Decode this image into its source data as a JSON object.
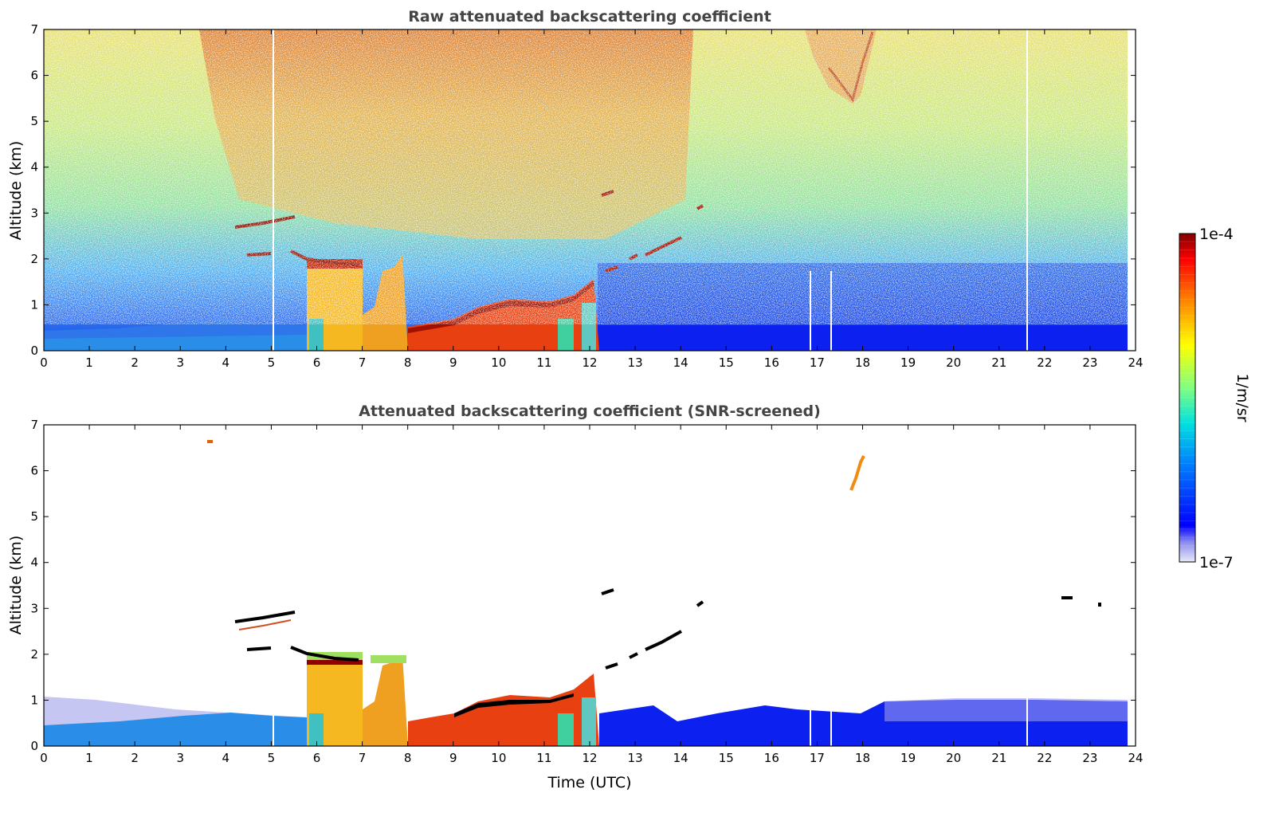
{
  "chart_data": [
    {
      "type": "heatmap",
      "title": "Raw attenuated backscattering coefficient",
      "xlabel": "",
      "ylabel": "Altitude (km)",
      "xlim": [
        0,
        24
      ],
      "ylim": [
        0,
        7
      ],
      "x_ticks": [
        0,
        1,
        2,
        3,
        4,
        5,
        6,
        7,
        8,
        9,
        10,
        11,
        12,
        13,
        14,
        15,
        16,
        17,
        18,
        19,
        20,
        21,
        22,
        23,
        24
      ],
      "y_ticks": [
        0,
        1,
        2,
        3,
        4,
        5,
        6,
        7
      ],
      "data_end_time": 23.8,
      "features": [
        {
          "label": "",
          "kind": "boundary_layer",
          "time": [
            0,
            5.7
          ],
          "top_km": [
            0.5,
            0.7
          ]
        },
        {
          "label": "",
          "kind": "cloud",
          "time": [
            4.2,
            5.3
          ],
          "alt_km": [
            2.1,
            2.9
          ]
        },
        {
          "label": "",
          "kind": "cloud",
          "time": [
            5.7,
            6.9
          ],
          "alt_km": [
            0,
            2.0
          ]
        },
        {
          "label": "",
          "kind": "cloud",
          "time": [
            6.9,
            8.0
          ],
          "alt_km": [
            0,
            2.0
          ]
        },
        {
          "label": "",
          "kind": "cloud",
          "time": [
            8.0,
            12.2
          ],
          "alt_km": [
            0,
            1.6
          ]
        },
        {
          "label": "",
          "kind": "cloud",
          "time": [
            12.2,
            14.5
          ],
          "alt_km": [
            1.5,
            3.3
          ]
        },
        {
          "label": "",
          "kind": "boundary_layer",
          "time": [
            12.2,
            23.8
          ],
          "top_km": [
            0.5,
            0.8
          ]
        },
        {
          "label": "",
          "kind": "plume",
          "time": [
            17.4,
            18.2
          ],
          "alt_km": [
            5.5,
            6.3
          ]
        }
      ]
    },
    {
      "type": "heatmap",
      "title": "Attenuated backscattering coefficient (SNR-screened)",
      "xlabel": "Time (UTC)",
      "ylabel": "Altitude (km)",
      "xlim": [
        0,
        24
      ],
      "ylim": [
        0,
        7
      ],
      "x_ticks": [
        0,
        1,
        2,
        3,
        4,
        5,
        6,
        7,
        8,
        9,
        10,
        11,
        12,
        13,
        14,
        15,
        16,
        17,
        18,
        19,
        20,
        21,
        22,
        23,
        24
      ],
      "y_ticks": [
        0,
        1,
        2,
        3,
        4,
        5,
        6,
        7
      ],
      "data_end_time": 23.8,
      "features": [
        {
          "label": "",
          "kind": "boundary_layer",
          "time": [
            0,
            5.7
          ],
          "top_km": [
            0.6,
            1.0
          ]
        },
        {
          "label": "",
          "kind": "cloud",
          "time": [
            4.2,
            5.3
          ],
          "alt_km": [
            2.1,
            2.9
          ]
        },
        {
          "label": "",
          "kind": "cloud",
          "time": [
            5.7,
            8.0
          ],
          "alt_km": [
            0,
            2.0
          ]
        },
        {
          "label": "",
          "kind": "cloud",
          "time": [
            8.0,
            12.2
          ],
          "alt_km": [
            0,
            1.6
          ]
        },
        {
          "label": "",
          "kind": "cloud",
          "time": [
            12.2,
            14.5
          ],
          "alt_km": [
            1.5,
            3.3
          ]
        },
        {
          "label": "",
          "kind": "boundary_layer",
          "time": [
            12.2,
            23.8
          ],
          "top_km": [
            0.6,
            1.0
          ]
        },
        {
          "label": "",
          "kind": "plume",
          "time": [
            17.4,
            18.2
          ],
          "alt_km": [
            5.5,
            6.3
          ]
        }
      ]
    }
  ],
  "colorbar": {
    "label": "1/m/sr",
    "max_label": "1e-4",
    "min_label": "1e-7",
    "range": [
      1e-07,
      0.0001
    ],
    "scale": "log",
    "colormap": "jet"
  }
}
